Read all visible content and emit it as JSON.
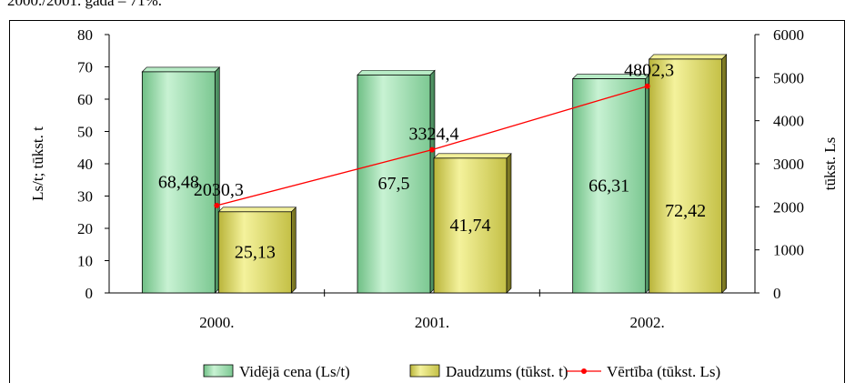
{
  "top_text": "2000./2001. gadā – 71%.",
  "chart_data": {
    "type": "bar",
    "categories": [
      "2000.",
      "2001.",
      "2002."
    ],
    "ylabel": "Ls/t;  tūkst. t",
    "y2label": "tūkst. Ls",
    "ylim": [
      0,
      80
    ],
    "y2lim": [
      0,
      6000
    ],
    "yticks": [
      "0",
      "10",
      "20",
      "30",
      "40",
      "50",
      "60",
      "70",
      "80"
    ],
    "y2ticks": [
      "0",
      "1000",
      "2000",
      "3000",
      "4000",
      "5000",
      "6000"
    ],
    "series": [
      {
        "name": "Vidējā cena (Ls/t)",
        "axis": "left",
        "type": "bar",
        "values": [
          68.48,
          67.5,
          66.31
        ],
        "labels": [
          "68,48",
          "67,5",
          "66,31"
        ],
        "color": "#9fe0b0"
      },
      {
        "name": "Daudzums (tūkst. t)",
        "axis": "left",
        "type": "bar",
        "values": [
          25.13,
          41.74,
          72.42
        ],
        "labels": [
          "25,13",
          "41,74",
          "72,42"
        ],
        "color": "#e8e67a"
      },
      {
        "name": "Vērtība (tūkst. Ls)",
        "axis": "right",
        "type": "line",
        "values": [
          2030.3,
          3324.4,
          4802.3
        ],
        "labels": [
          "2030,3",
          "3324,4",
          "4802,3"
        ],
        "color": "#ff0000"
      }
    ],
    "legend_position": "bottom",
    "grid": false
  }
}
